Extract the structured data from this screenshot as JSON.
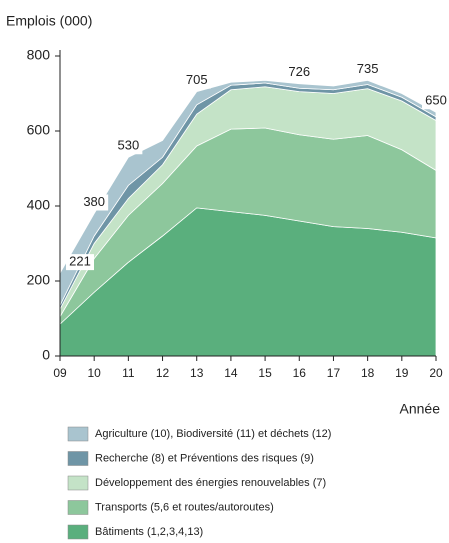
{
  "chart_data": {
    "type": "stacked_area",
    "y_label": "Emplois (000)",
    "x_label": "Année",
    "categories": [
      "09",
      "10",
      "11",
      "12",
      "13",
      "14",
      "15",
      "16",
      "17",
      "18",
      "19",
      "20"
    ],
    "series": [
      {
        "name": "Bâtiments (1,2,3,4,13)",
        "color": "#5aaf7d",
        "values": [
          85,
          170,
          250,
          320,
          395,
          385,
          375,
          360,
          345,
          340,
          330,
          315
        ]
      },
      {
        "name": "Transports (5,6 et routes/autoroutes)",
        "color": "#8dc79c",
        "values": [
          20,
          90,
          125,
          140,
          165,
          220,
          233,
          230,
          233,
          248,
          220,
          180
        ]
      },
      {
        "name": "Développement des énergies renouvelables (7)",
        "color": "#c4e3c7",
        "values": [
          20,
          40,
          45,
          50,
          85,
          105,
          110,
          115,
          122,
          125,
          130,
          133
        ]
      },
      {
        "name": "Recherche (8) et Préventions des risques (9)",
        "color": "#6f95a6",
        "values": [
          10,
          20,
          35,
          20,
          25,
          12,
          10,
          9,
          10,
          11,
          10,
          10
        ]
      },
      {
        "name": "Agriculture (10), Biodiversité (11) et déchets (12)",
        "color": "#a9c4cf",
        "values": [
          86,
          60,
          75,
          45,
          35,
          8,
          7,
          12,
          10,
          11,
          10,
          12
        ]
      }
    ],
    "annotations": [
      {
        "x": "09",
        "value": 221
      },
      {
        "x": "10",
        "value": 380
      },
      {
        "x": "11",
        "value": 530
      },
      {
        "x": "13",
        "value": 705
      },
      {
        "x": "16",
        "value": 726
      },
      {
        "x": "18",
        "value": 735
      },
      {
        "x": "20",
        "value": 650
      }
    ],
    "ylim": [
      0,
      800
    ],
    "yticks": [
      0,
      200,
      400,
      600,
      800
    ]
  }
}
